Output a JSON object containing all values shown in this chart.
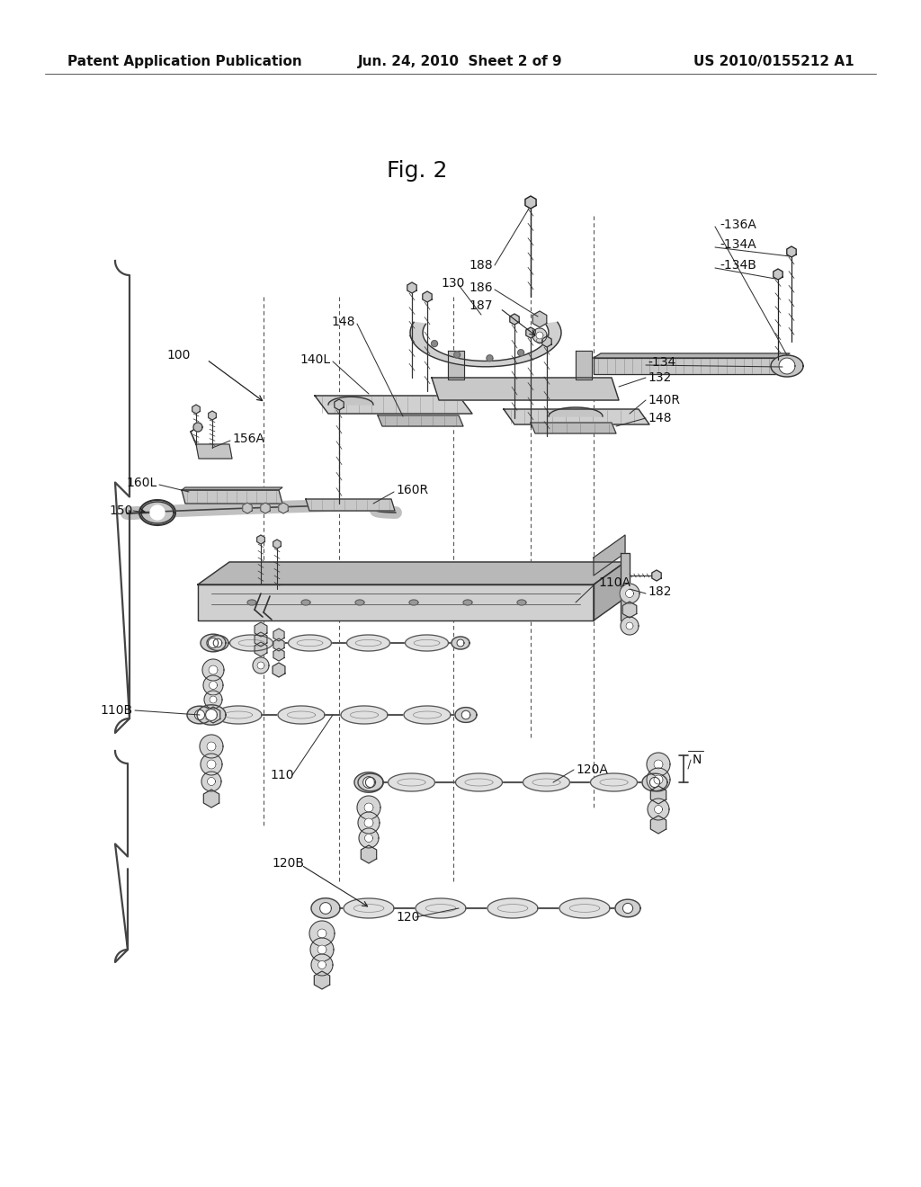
{
  "bg_color": "#ffffff",
  "header_left": "Patent Application Publication",
  "header_center": "Jun. 24, 2010  Sheet 2 of 9",
  "header_right": "US 2010/0155212 A1",
  "title": "Fig. 2",
  "figsize": [
    10.24,
    13.2
  ],
  "dpi": 100,
  "header_fontsize": 11,
  "title_fontsize": 18,
  "label_fontsize": 10
}
